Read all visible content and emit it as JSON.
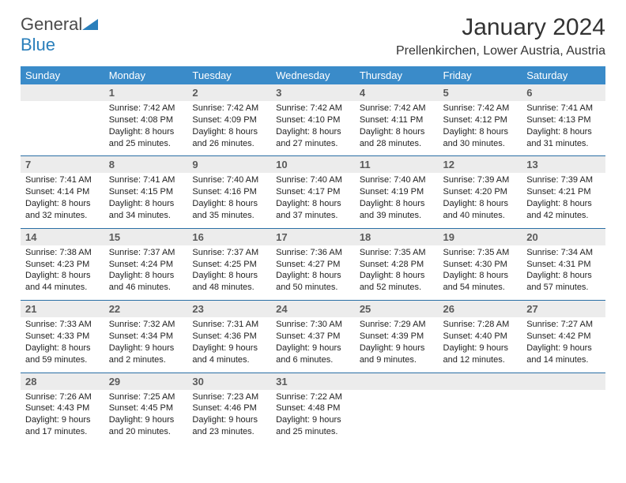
{
  "brand": {
    "name_gray": "General",
    "name_blue": "Blue"
  },
  "title": "January 2024",
  "location": "Prellenkirchen, Lower Austria, Austria",
  "colors": {
    "header_bg": "#3a8bc9",
    "header_text": "#ffffff",
    "daynum_bg": "#ececec",
    "daynum_text": "#5a5a5a",
    "rule": "#2a6fa5",
    "body_text": "#222222",
    "brand_blue": "#2a7fbb",
    "brand_gray": "#4a4a4a"
  },
  "day_headers": [
    "Sunday",
    "Monday",
    "Tuesday",
    "Wednesday",
    "Thursday",
    "Friday",
    "Saturday"
  ],
  "weeks": [
    [
      null,
      {
        "n": "1",
        "sr": "7:42 AM",
        "ss": "4:08 PM",
        "dl": "8 hours and 25 minutes."
      },
      {
        "n": "2",
        "sr": "7:42 AM",
        "ss": "4:09 PM",
        "dl": "8 hours and 26 minutes."
      },
      {
        "n": "3",
        "sr": "7:42 AM",
        "ss": "4:10 PM",
        "dl": "8 hours and 27 minutes."
      },
      {
        "n": "4",
        "sr": "7:42 AM",
        "ss": "4:11 PM",
        "dl": "8 hours and 28 minutes."
      },
      {
        "n": "5",
        "sr": "7:42 AM",
        "ss": "4:12 PM",
        "dl": "8 hours and 30 minutes."
      },
      {
        "n": "6",
        "sr": "7:41 AM",
        "ss": "4:13 PM",
        "dl": "8 hours and 31 minutes."
      }
    ],
    [
      {
        "n": "7",
        "sr": "7:41 AM",
        "ss": "4:14 PM",
        "dl": "8 hours and 32 minutes."
      },
      {
        "n": "8",
        "sr": "7:41 AM",
        "ss": "4:15 PM",
        "dl": "8 hours and 34 minutes."
      },
      {
        "n": "9",
        "sr": "7:40 AM",
        "ss": "4:16 PM",
        "dl": "8 hours and 35 minutes."
      },
      {
        "n": "10",
        "sr": "7:40 AM",
        "ss": "4:17 PM",
        "dl": "8 hours and 37 minutes."
      },
      {
        "n": "11",
        "sr": "7:40 AM",
        "ss": "4:19 PM",
        "dl": "8 hours and 39 minutes."
      },
      {
        "n": "12",
        "sr": "7:39 AM",
        "ss": "4:20 PM",
        "dl": "8 hours and 40 minutes."
      },
      {
        "n": "13",
        "sr": "7:39 AM",
        "ss": "4:21 PM",
        "dl": "8 hours and 42 minutes."
      }
    ],
    [
      {
        "n": "14",
        "sr": "7:38 AM",
        "ss": "4:23 PM",
        "dl": "8 hours and 44 minutes."
      },
      {
        "n": "15",
        "sr": "7:37 AM",
        "ss": "4:24 PM",
        "dl": "8 hours and 46 minutes."
      },
      {
        "n": "16",
        "sr": "7:37 AM",
        "ss": "4:25 PM",
        "dl": "8 hours and 48 minutes."
      },
      {
        "n": "17",
        "sr": "7:36 AM",
        "ss": "4:27 PM",
        "dl": "8 hours and 50 minutes."
      },
      {
        "n": "18",
        "sr": "7:35 AM",
        "ss": "4:28 PM",
        "dl": "8 hours and 52 minutes."
      },
      {
        "n": "19",
        "sr": "7:35 AM",
        "ss": "4:30 PM",
        "dl": "8 hours and 54 minutes."
      },
      {
        "n": "20",
        "sr": "7:34 AM",
        "ss": "4:31 PM",
        "dl": "8 hours and 57 minutes."
      }
    ],
    [
      {
        "n": "21",
        "sr": "7:33 AM",
        "ss": "4:33 PM",
        "dl": "8 hours and 59 minutes."
      },
      {
        "n": "22",
        "sr": "7:32 AM",
        "ss": "4:34 PM",
        "dl": "9 hours and 2 minutes."
      },
      {
        "n": "23",
        "sr": "7:31 AM",
        "ss": "4:36 PM",
        "dl": "9 hours and 4 minutes."
      },
      {
        "n": "24",
        "sr": "7:30 AM",
        "ss": "4:37 PM",
        "dl": "9 hours and 6 minutes."
      },
      {
        "n": "25",
        "sr": "7:29 AM",
        "ss": "4:39 PM",
        "dl": "9 hours and 9 minutes."
      },
      {
        "n": "26",
        "sr": "7:28 AM",
        "ss": "4:40 PM",
        "dl": "9 hours and 12 minutes."
      },
      {
        "n": "27",
        "sr": "7:27 AM",
        "ss": "4:42 PM",
        "dl": "9 hours and 14 minutes."
      }
    ],
    [
      {
        "n": "28",
        "sr": "7:26 AM",
        "ss": "4:43 PM",
        "dl": "9 hours and 17 minutes."
      },
      {
        "n": "29",
        "sr": "7:25 AM",
        "ss": "4:45 PM",
        "dl": "9 hours and 20 minutes."
      },
      {
        "n": "30",
        "sr": "7:23 AM",
        "ss": "4:46 PM",
        "dl": "9 hours and 23 minutes."
      },
      {
        "n": "31",
        "sr": "7:22 AM",
        "ss": "4:48 PM",
        "dl": "9 hours and 25 minutes."
      },
      null,
      null,
      null
    ]
  ],
  "labels": {
    "sunrise": "Sunrise:",
    "sunset": "Sunset:",
    "daylight": "Daylight:"
  }
}
